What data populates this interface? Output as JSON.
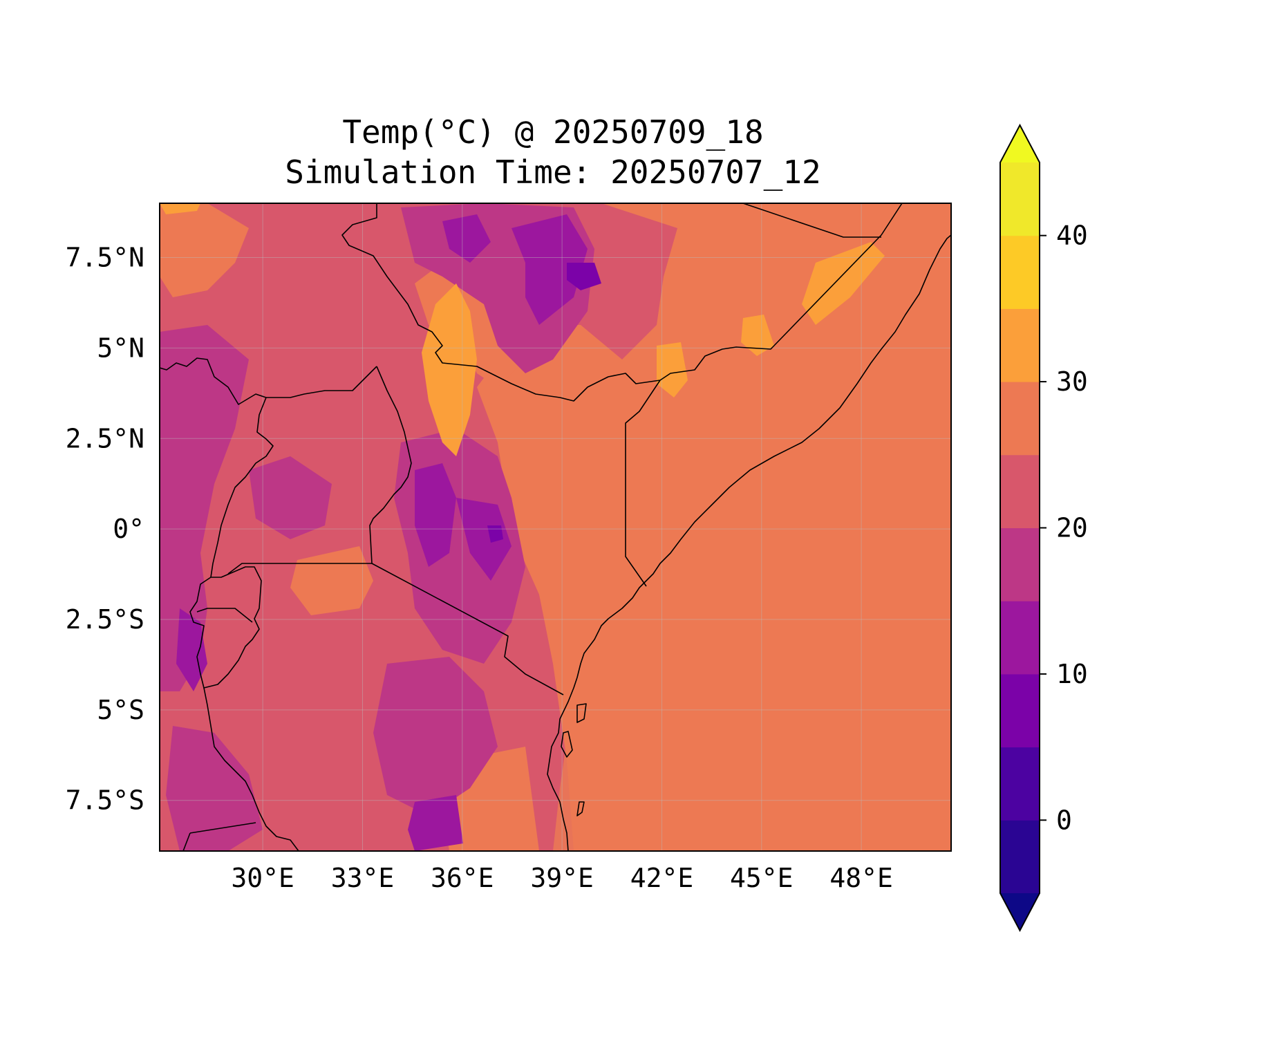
{
  "figure": {
    "title_line1": "Temp(°C) @ 20250709_18",
    "title_line2": "Simulation Time: 20250707_12"
  },
  "map": {
    "region": "East Africa",
    "projection": "PlateCarree",
    "lon_range": [
      26.9,
      50.7
    ],
    "lat_range": [
      -8.9,
      9.0
    ],
    "x_ticks": [
      {
        "lon": 30,
        "label": "30°E"
      },
      {
        "lon": 33,
        "label": "33°E"
      },
      {
        "lon": 36,
        "label": "36°E"
      },
      {
        "lon": 39,
        "label": "39°E"
      },
      {
        "lon": 42,
        "label": "42°E"
      },
      {
        "lon": 45,
        "label": "45°E"
      },
      {
        "lon": 48,
        "label": "48°E"
      }
    ],
    "y_ticks": [
      {
        "lat": 7.5,
        "label": "7.5°N"
      },
      {
        "lat": 5,
        "label": "5°N"
      },
      {
        "lat": 2.5,
        "label": "2.5°N"
      },
      {
        "lat": 0,
        "label": "0°"
      },
      {
        "lat": -2.5,
        "label": "2.5°S"
      },
      {
        "lat": -5,
        "label": "5°S"
      },
      {
        "lat": -7.5,
        "label": "7.5°S"
      }
    ],
    "gridlines": true,
    "ocean_color": "#e87458",
    "colors": {
      "c_5_10": "#7b02a8",
      "c_10_15": "#9c179e",
      "c_15_20": "#bd3786",
      "c_20_25": "#d8576b",
      "c_25_30": "#ed7953",
      "c_30_35": "#fb9f3a",
      "c_35_40": "#fdca26"
    }
  },
  "colorbar": {
    "label": "",
    "vmin": -5,
    "vmax": 45,
    "levels": [
      -5,
      0,
      5,
      10,
      15,
      20,
      25,
      30,
      35,
      40,
      45
    ],
    "colors": [
      "#2a0593",
      "#4c02a1",
      "#7b02a8",
      "#9c179e",
      "#bd3786",
      "#d8576b",
      "#ed7953",
      "#fb9f3a",
      "#fdca26",
      "#f0e82a"
    ],
    "extend_low_color": "#0d0887",
    "extend_high_color": "#f0f921",
    "ticks": [
      {
        "value": 0,
        "label": "0"
      },
      {
        "value": 10,
        "label": "10"
      },
      {
        "value": 20,
        "label": "20"
      },
      {
        "value": 30,
        "label": "30"
      },
      {
        "value": 40,
        "label": "40"
      }
    ]
  }
}
